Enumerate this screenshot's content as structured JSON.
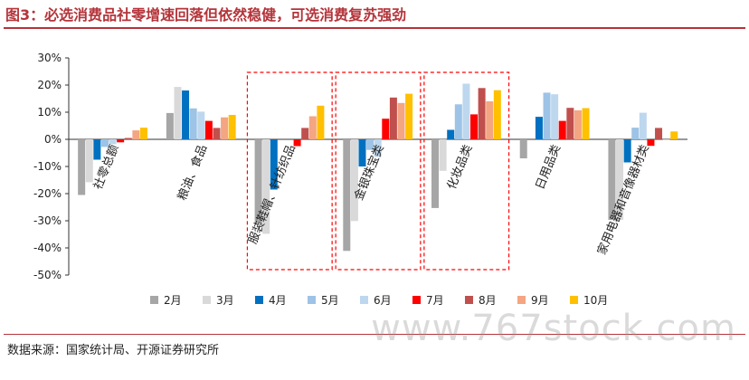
{
  "title": "图3：必选消费品社零增速回落但依然稳健，可选消费复苏强劲",
  "source": "数据来源：国家统计局、开源证券研究所",
  "watermark": "www.767stock.com",
  "chart_data": {
    "type": "bar",
    "ylim": [
      -50,
      30
    ],
    "yticks": [
      "30%",
      "20%",
      "10%",
      "0%",
      "-10%",
      "-20%",
      "-30%",
      "-40%",
      "-50%"
    ],
    "categories": [
      "社零总额",
      "粮油、食品",
      "服装鞋帽、针纺织品",
      "金银珠宝类",
      "化妆品类",
      "日用品类",
      "家用电器和音像器材类"
    ],
    "highlighted_categories": [
      2,
      3,
      4
    ],
    "legend_position": "bottom",
    "series": [
      {
        "name": "2月",
        "color": "#a6a6a6",
        "values": [
          -20.5,
          9.7,
          -30.9,
          -41.1,
          -25.3,
          -7.0,
          -29.7
        ]
      },
      {
        "name": "3月",
        "color": "#d9d9d9",
        "values": [
          -15.8,
          19.3,
          -34.8,
          -30.1,
          -11.6,
          0.0,
          -29.7
        ]
      },
      {
        "name": "4月",
        "color": "#0070c0",
        "values": [
          -7.5,
          18.0,
          -18.5,
          -10.0,
          3.5,
          8.3,
          -8.5
        ]
      },
      {
        "name": "5月",
        "color": "#9dc3e6",
        "values": [
          -2.8,
          11.4,
          0.0,
          -3.9,
          12.9,
          17.2,
          4.3
        ]
      },
      {
        "name": "6月",
        "color": "#bdd7ee",
        "values": [
          -1.8,
          10.2,
          0.0,
          -6.4,
          20.5,
          16.6,
          9.8
        ]
      },
      {
        "name": "7月",
        "color": "#ff0000",
        "values": [
          -1.1,
          6.8,
          -2.5,
          7.6,
          9.2,
          6.8,
          -2.4
        ]
      },
      {
        "name": "8月",
        "color": "#c0504d",
        "values": [
          0.5,
          4.2,
          4.2,
          15.4,
          18.9,
          11.6,
          4.2
        ]
      },
      {
        "name": "9月",
        "color": "#f4a582",
        "values": [
          3.3,
          8.1,
          8.5,
          13.4,
          14.0,
          10.7,
          -0.2
        ]
      },
      {
        "name": "10月",
        "color": "#ffc000",
        "values": [
          4.3,
          9.0,
          12.4,
          16.8,
          18.1,
          11.5,
          2.9
        ]
      }
    ]
  }
}
